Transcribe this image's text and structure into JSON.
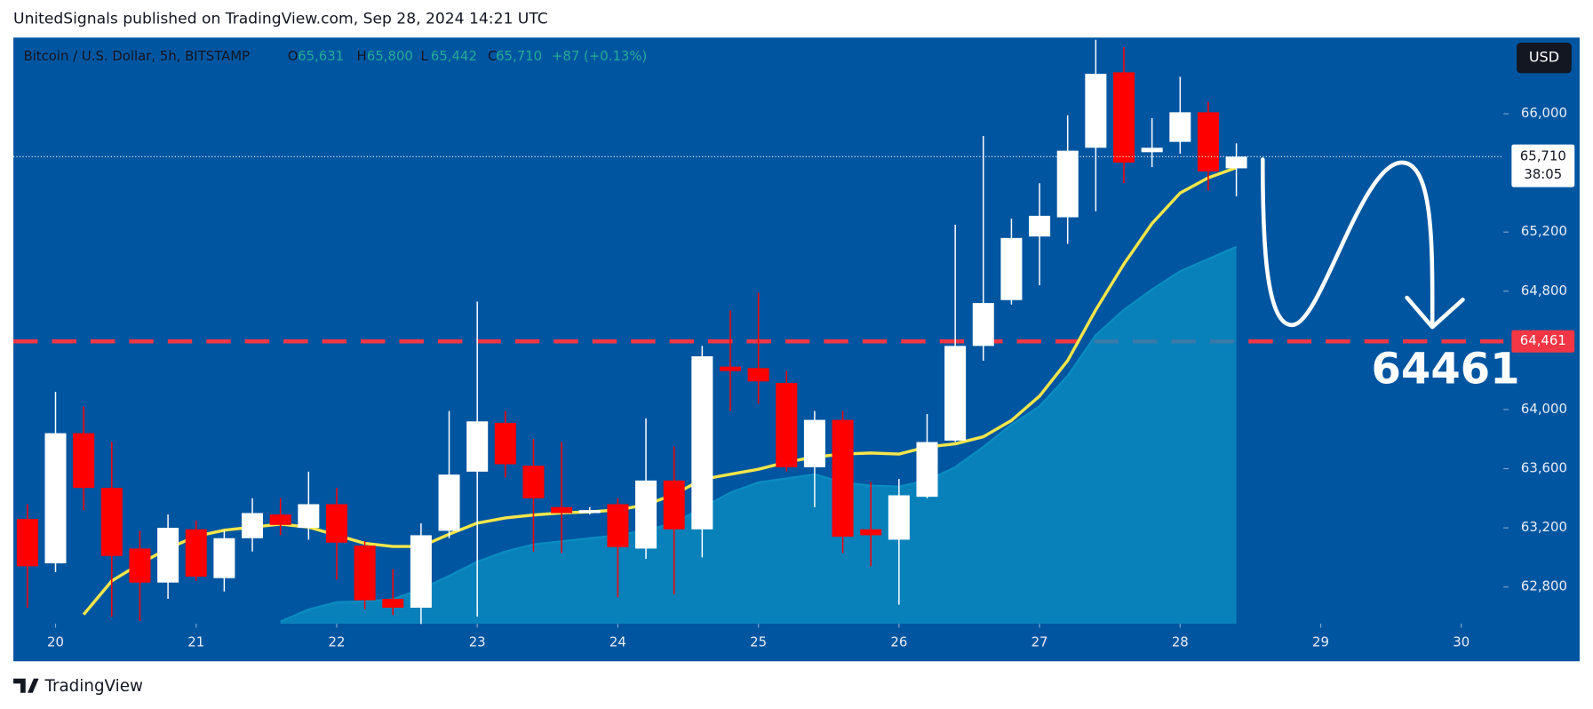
{
  "header": {
    "publisher": "UnitedSignals published on TradingView.com, Sep 28, 2024 14:21 UTC"
  },
  "footer": {
    "brand": "TradingView"
  },
  "currency_button": "USD",
  "chart_data": {
    "type": "candlestick",
    "legend": {
      "symbol": "Bitcoin / U.S. Dollar, 5h, BITSTAMP",
      "items": [
        {
          "key": "O",
          "value": "65,631"
        },
        {
          "key": "H",
          "value": "65,800"
        },
        {
          "key": "L",
          "value": "65,442"
        },
        {
          "key": "C",
          "value": "65,710"
        }
      ],
      "change": "+87 (+0.13%)"
    },
    "x": [
      19.8,
      20.0,
      20.2,
      20.4,
      20.6,
      20.8,
      21.0,
      21.2,
      21.4,
      21.6,
      21.8,
      22.0,
      22.2,
      22.4,
      22.6,
      22.8,
      23.0,
      23.2,
      23.4,
      23.6,
      23.8,
      24.0,
      24.2,
      24.4,
      24.6,
      24.8,
      25.0,
      25.2,
      25.4,
      25.6,
      25.8,
      26.0,
      26.2,
      26.4,
      26.6,
      26.8,
      27.0,
      27.2,
      27.4,
      27.6,
      27.8,
      28.0,
      28.2,
      28.4
    ],
    "open": [
      63260,
      62960,
      63840,
      63470,
      63060,
      62830,
      63190,
      62860,
      63130,
      63290,
      63200,
      63360,
      63080,
      62720,
      62660,
      63180,
      63580,
      63910,
      63620,
      63340,
      63300,
      63360,
      63060,
      63520,
      63190,
      64290,
      64280,
      64180,
      63610,
      63930,
      63190,
      63120,
      63410,
      63790,
      64430,
      64740,
      65170,
      65300,
      65770,
      66280,
      65740,
      65810,
      66010,
      65631
    ],
    "high": [
      63360,
      64120,
      64020,
      63780,
      63180,
      63290,
      63250,
      63180,
      63400,
      63400,
      63580,
      63470,
      63110,
      62920,
      63230,
      63990,
      64730,
      63990,
      63800,
      63780,
      63340,
      63400,
      63940,
      63750,
      64430,
      64670,
      64790,
      64260,
      63990,
      63990,
      63510,
      63530,
      63970,
      65250,
      65850,
      65290,
      65530,
      65990,
      66500,
      66450,
      65970,
      66250,
      66080,
      65800
    ],
    "low": [
      62660,
      62900,
      63320,
      62600,
      62570,
      62720,
      62840,
      62770,
      63040,
      63150,
      63120,
      62850,
      62650,
      62610,
      62550,
      63130,
      62600,
      63540,
      63040,
      63030,
      63290,
      62730,
      62990,
      62750,
      63000,
      63990,
      64040,
      63580,
      63340,
      63030,
      62940,
      62680,
      63400,
      63780,
      64330,
      64710,
      64840,
      65120,
      65340,
      65530,
      65640,
      65730,
      65480,
      65442
    ],
    "close": [
      62940,
      63840,
      63470,
      63010,
      62830,
      63200,
      62870,
      63130,
      63300,
      63220,
      63360,
      63100,
      62710,
      62660,
      63150,
      63560,
      63920,
      63630,
      63400,
      63300,
      63320,
      63070,
      63520,
      63190,
      64360,
      64260,
      64190,
      63610,
      63930,
      63140,
      63150,
      63420,
      63780,
      64430,
      64720,
      65160,
      65310,
      65750,
      66270,
      65670,
      65770,
      66010,
      65610,
      65710
    ],
    "up_color": "#ffffff",
    "down_color": "#ff0000",
    "lines": [
      {
        "color": "#0a8cc0",
        "fill": true,
        "values": [
          null,
          null,
          null,
          null,
          null,
          null,
          null,
          null,
          null,
          62566,
          62648,
          62697,
          62703,
          62717,
          62786,
          62875,
          62971,
          63040,
          63088,
          63109,
          63129,
          63150,
          63184,
          63232,
          63335,
          63438,
          63507,
          63534,
          63562,
          63507,
          63486,
          63479,
          63521,
          63610,
          63747,
          63898,
          64022,
          64228,
          64503,
          64674,
          64812,
          64935,
          65018,
          65100
        ]
      },
      {
        "color": "#f5e64a",
        "fill": false,
        "values": [
          null,
          null,
          62614,
          62841,
          62957,
          63060,
          63143,
          63184,
          63205,
          63225,
          63205,
          63150,
          63095,
          63074,
          63074,
          63157,
          63232,
          63267,
          63287,
          63301,
          63308,
          63321,
          63356,
          63425,
          63528,
          63562,
          63596,
          63644,
          63679,
          63699,
          63706,
          63699,
          63747,
          63768,
          63816,
          63926,
          64091,
          64331,
          64674,
          64984,
          65258,
          65464,
          65567,
          65636
        ]
      }
    ],
    "level": {
      "value": 64461,
      "label": "64,461",
      "annotation": "64461",
      "color": "#f23645"
    },
    "last_price": {
      "value": 65710,
      "label": "65,710",
      "countdown": "38:05"
    },
    "xlim": [
      19.7,
      30.3
    ],
    "xticks": [
      20,
      21,
      22,
      23,
      24,
      25,
      26,
      27,
      28,
      29,
      30
    ],
    "ylim": [
      62552,
      66515
    ],
    "yticks": [
      {
        "value": 62800,
        "label": "62,800"
      },
      {
        "value": 63200,
        "label": "63,200"
      },
      {
        "value": 63600,
        "label": "63,600"
      },
      {
        "value": 64000,
        "label": "64,000"
      },
      {
        "value": 64800,
        "label": "64,800"
      },
      {
        "value": 65200,
        "label": "65,200"
      },
      {
        "value": 66000,
        "label": "66,000"
      }
    ],
    "grid": false
  }
}
